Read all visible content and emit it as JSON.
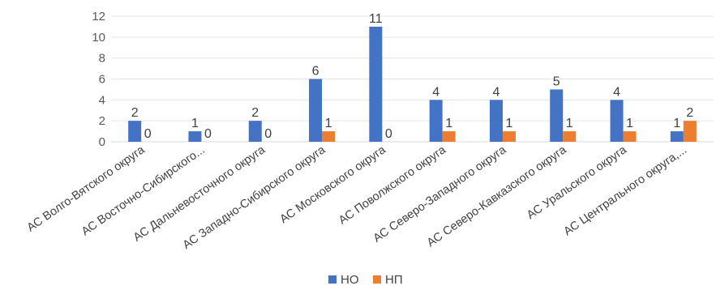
{
  "chart_data": {
    "type": "bar",
    "categories": [
      "АС Волго-Вятского округа",
      "АС Восточно-Сибирского...",
      "АС Дальневосточного округа",
      "АС Западно-Сибирского округа",
      "АС Московского округа",
      "АС Поволжского округа",
      "АС Северо-Западного округа",
      "АС Северо-Кавказского округа",
      "АС Уральского округа",
      "АС Центрального округа,..."
    ],
    "series": [
      {
        "name": "НО",
        "color": "#4472c4",
        "values": [
          2,
          1,
          2,
          6,
          11,
          4,
          4,
          5,
          4,
          1
        ]
      },
      {
        "name": "НП",
        "color": "#ed7d31",
        "values": [
          0,
          0,
          0,
          1,
          0,
          1,
          1,
          1,
          1,
          2
        ]
      }
    ],
    "ylim": [
      0,
      12
    ],
    "yticks": [
      0,
      2,
      4,
      6,
      8,
      10,
      12
    ],
    "grid": true,
    "legend_position": "bottom",
    "data_labels": true,
    "title": "",
    "xlabel": "",
    "ylabel": ""
  }
}
